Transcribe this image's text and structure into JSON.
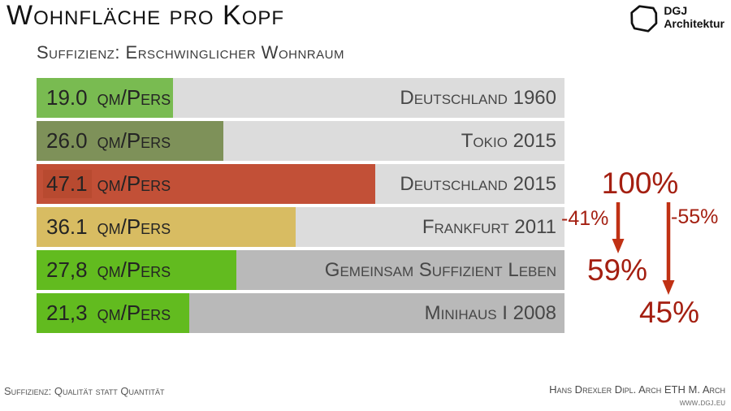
{
  "header": {
    "title": "Wohnfläche pro Kopf",
    "logo": {
      "line1": "DGJ",
      "line2": "Architektur"
    }
  },
  "subtitle": "Suffizienz: Erschwinglicher Wohnraum",
  "chart_data": {
    "type": "bar",
    "orientation": "horizontal",
    "title": "Wohnfläche pro Kopf",
    "subtitle": "Suffizienz: Erschwinglicher Wohnraum",
    "unit": "qm/Pers",
    "axis_max": 73.5,
    "grid": false,
    "rows": [
      {
        "value": 19.0,
        "value_label": "19.0",
        "label": "Deutschland 1960",
        "bar_color": "#79bb51",
        "track_color": "#dcdcdc"
      },
      {
        "value": 26.0,
        "value_label": "26.0",
        "label": "Tokio 2015",
        "bar_color": "#7e9159",
        "track_color": "#dcdcdc"
      },
      {
        "value": 47.1,
        "value_label": "47.1",
        "label": "Deutschland 2015",
        "bar_color": "#c25037",
        "track_color": "#dcdcdc",
        "value_patch_color": "#b84a30"
      },
      {
        "value": 36.1,
        "value_label": "36.1",
        "label": "Frankfurt 2011",
        "bar_color": "#d8bc62",
        "track_color": "#dcdcdc"
      },
      {
        "value": 27.8,
        "value_label": "27,8",
        "label": "Gemeinsam Suffizient Leben",
        "bar_color": "#62bb1f",
        "track_color": "#b9b9b9"
      },
      {
        "value": 21.3,
        "value_label": "21,3",
        "label": "Minihaus I 2008",
        "bar_color": "#62bb1f",
        "track_color": "#b9b9b9"
      }
    ],
    "annotations": {
      "base": "100%",
      "delta_left": "-41%",
      "delta_right": "-55%",
      "result_left": "59%",
      "result_right": "45%",
      "text_color": "#a41f11",
      "arrow_color": "#c03114"
    }
  },
  "footer": {
    "left": "Suffizienz: Qualität statt Quantität",
    "right_line1": "Hans Drexler Dipl. Arch ETH M. Arch",
    "right_line2": "www.dgj.eu"
  }
}
